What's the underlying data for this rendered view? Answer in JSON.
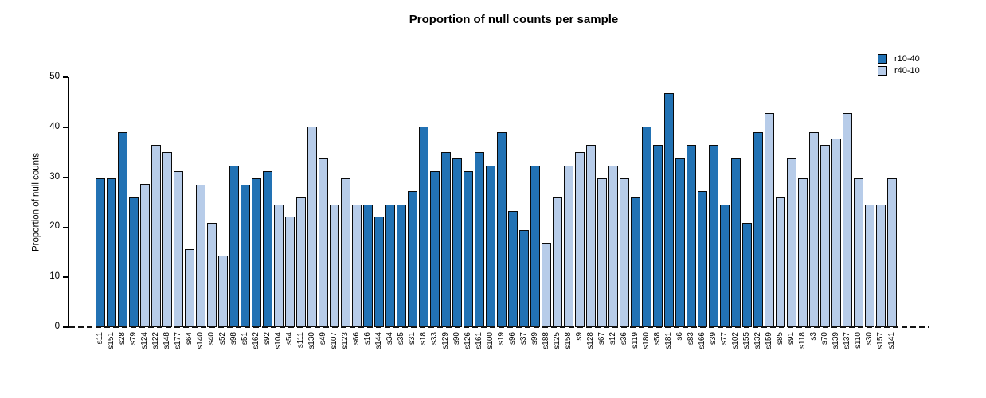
{
  "chart_data": {
    "type": "bar",
    "title": "Proportion of null counts per sample",
    "xlabel": "",
    "ylabel": "Proportion of null counts",
    "ylim": [
      0,
      50
    ],
    "yticks": [
      0,
      10,
      20,
      30,
      40,
      50
    ],
    "grid": false,
    "legend_position": "top-right",
    "zero_line_style": "dashed",
    "bar_border_color": "#0a0a0a",
    "legend": [
      {
        "label": "r10-40",
        "color": "#2272b4"
      },
      {
        "label": "r40-10",
        "color": "#b7cce9"
      }
    ],
    "series_colors": {
      "r10-40": "#2272b4",
      "r40-10": "#b7cce9"
    },
    "bars": [
      {
        "label": "s11",
        "value": 29.8,
        "series": "r10-40"
      },
      {
        "label": "s151",
        "value": 29.8,
        "series": "r10-40"
      },
      {
        "label": "s28",
        "value": 39.0,
        "series": "r10-40"
      },
      {
        "label": "s79",
        "value": 26.0,
        "series": "r10-40"
      },
      {
        "label": "s124",
        "value": 28.6,
        "series": "r40-10"
      },
      {
        "label": "s122",
        "value": 36.4,
        "series": "r40-10"
      },
      {
        "label": "s148",
        "value": 35.0,
        "series": "r40-10"
      },
      {
        "label": "s177",
        "value": 31.2,
        "series": "r40-10"
      },
      {
        "label": "s64",
        "value": 15.6,
        "series": "r40-10"
      },
      {
        "label": "s140",
        "value": 28.5,
        "series": "r40-10"
      },
      {
        "label": "s40",
        "value": 20.8,
        "series": "r40-10"
      },
      {
        "label": "s52",
        "value": 14.3,
        "series": "r40-10"
      },
      {
        "label": "s98",
        "value": 32.4,
        "series": "r10-40"
      },
      {
        "label": "s51",
        "value": 28.5,
        "series": "r10-40"
      },
      {
        "label": "s162",
        "value": 29.8,
        "series": "r10-40"
      },
      {
        "label": "s92",
        "value": 31.2,
        "series": "r10-40"
      },
      {
        "label": "s104",
        "value": 24.6,
        "series": "r40-10"
      },
      {
        "label": "s54",
        "value": 22.1,
        "series": "r40-10"
      },
      {
        "label": "s111",
        "value": 26.0,
        "series": "r40-10"
      },
      {
        "label": "s130",
        "value": 40.2,
        "series": "r40-10"
      },
      {
        "label": "s49",
        "value": 33.8,
        "series": "r40-10"
      },
      {
        "label": "s107",
        "value": 24.6,
        "series": "r40-10"
      },
      {
        "label": "s123",
        "value": 29.8,
        "series": "r40-10"
      },
      {
        "label": "s66",
        "value": 24.6,
        "series": "r40-10"
      },
      {
        "label": "s16",
        "value": 24.6,
        "series": "r10-40"
      },
      {
        "label": "s144",
        "value": 22.1,
        "series": "r10-40"
      },
      {
        "label": "s34",
        "value": 24.6,
        "series": "r10-40"
      },
      {
        "label": "s35",
        "value": 24.6,
        "series": "r10-40"
      },
      {
        "label": "s31",
        "value": 27.3,
        "series": "r10-40"
      },
      {
        "label": "s18",
        "value": 40.2,
        "series": "r10-40"
      },
      {
        "label": "s33",
        "value": 31.2,
        "series": "r10-40"
      },
      {
        "label": "s129",
        "value": 35.0,
        "series": "r10-40"
      },
      {
        "label": "s90",
        "value": 33.8,
        "series": "r10-40"
      },
      {
        "label": "s126",
        "value": 31.2,
        "series": "r10-40"
      },
      {
        "label": "s161",
        "value": 35.0,
        "series": "r10-40"
      },
      {
        "label": "s100",
        "value": 32.4,
        "series": "r10-40"
      },
      {
        "label": "s19",
        "value": 39.0,
        "series": "r10-40"
      },
      {
        "label": "s96",
        "value": 23.3,
        "series": "r10-40"
      },
      {
        "label": "s37",
        "value": 19.5,
        "series": "r10-40"
      },
      {
        "label": "s99",
        "value": 32.4,
        "series": "r10-40"
      },
      {
        "label": "s188",
        "value": 16.9,
        "series": "r40-10"
      },
      {
        "label": "s125",
        "value": 26.0,
        "series": "r40-10"
      },
      {
        "label": "s158",
        "value": 32.4,
        "series": "r40-10"
      },
      {
        "label": "s9",
        "value": 35.0,
        "series": "r40-10"
      },
      {
        "label": "s128",
        "value": 36.4,
        "series": "r40-10"
      },
      {
        "label": "s67",
        "value": 29.8,
        "series": "r40-10"
      },
      {
        "label": "s12",
        "value": 32.4,
        "series": "r40-10"
      },
      {
        "label": "s36",
        "value": 29.8,
        "series": "r40-10"
      },
      {
        "label": "s119",
        "value": 26.0,
        "series": "r10-40"
      },
      {
        "label": "s180",
        "value": 40.2,
        "series": "r10-40"
      },
      {
        "label": "s58",
        "value": 36.4,
        "series": "r10-40"
      },
      {
        "label": "s181",
        "value": 46.8,
        "series": "r10-40"
      },
      {
        "label": "s6",
        "value": 33.8,
        "series": "r10-40"
      },
      {
        "label": "s83",
        "value": 36.4,
        "series": "r10-40"
      },
      {
        "label": "s166",
        "value": 27.3,
        "series": "r10-40"
      },
      {
        "label": "s39",
        "value": 36.4,
        "series": "r10-40"
      },
      {
        "label": "s77",
        "value": 24.6,
        "series": "r10-40"
      },
      {
        "label": "s102",
        "value": 33.8,
        "series": "r10-40"
      },
      {
        "label": "s155",
        "value": 20.8,
        "series": "r10-40"
      },
      {
        "label": "s132",
        "value": 39.0,
        "series": "r10-40"
      },
      {
        "label": "s159",
        "value": 42.8,
        "series": "r40-10"
      },
      {
        "label": "s85",
        "value": 25.9,
        "series": "r40-10"
      },
      {
        "label": "s91",
        "value": 33.8,
        "series": "r40-10"
      },
      {
        "label": "s118",
        "value": 29.8,
        "series": "r40-10"
      },
      {
        "label": "s3",
        "value": 39.0,
        "series": "r40-10"
      },
      {
        "label": "s70",
        "value": 36.4,
        "series": "r40-10"
      },
      {
        "label": "s139",
        "value": 37.8,
        "series": "r40-10"
      },
      {
        "label": "s137",
        "value": 42.8,
        "series": "r40-10"
      },
      {
        "label": "s110",
        "value": 29.8,
        "series": "r40-10"
      },
      {
        "label": "s30",
        "value": 24.6,
        "series": "r40-10"
      },
      {
        "label": "s157",
        "value": 24.6,
        "series": "r40-10"
      },
      {
        "label": "s141",
        "value": 29.8,
        "series": "r40-10"
      }
    ]
  }
}
